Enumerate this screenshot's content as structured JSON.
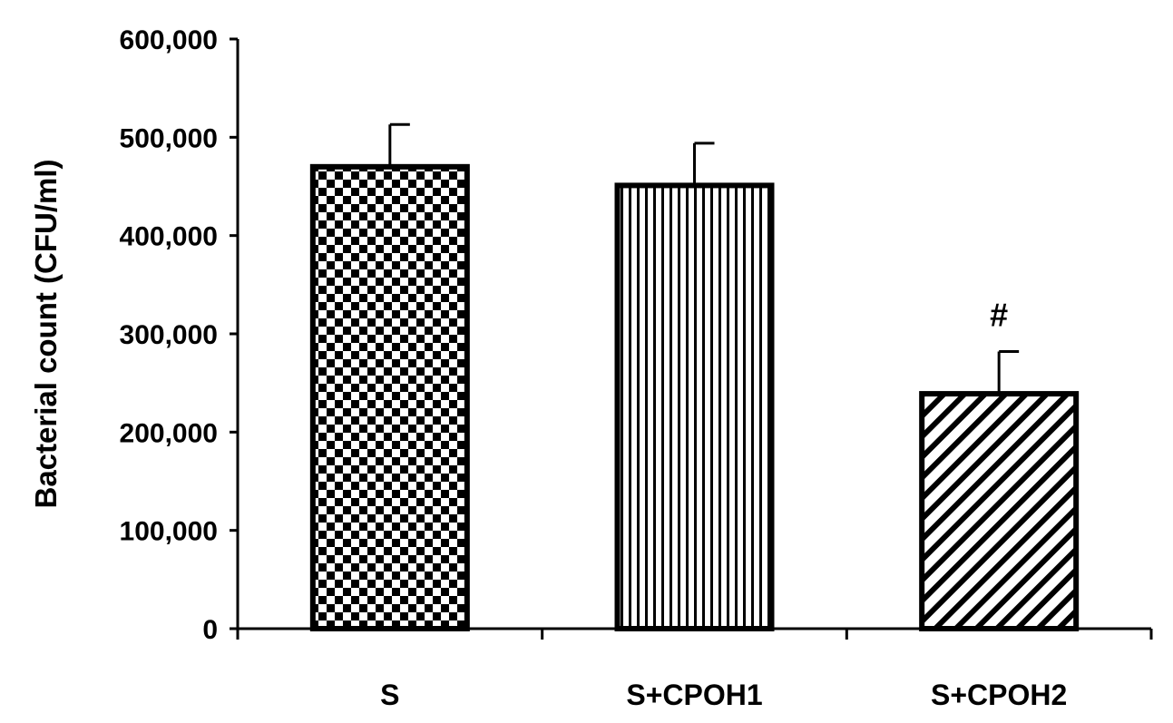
{
  "chart_data": {
    "type": "bar",
    "categories": [
      "S",
      "S+CPOH1",
      "S+CPOH2"
    ],
    "values": [
      470000,
      451000,
      239000
    ],
    "errors": [
      43000,
      43000,
      43000
    ],
    "annotations": [
      "",
      "",
      "#"
    ],
    "patterns": [
      "checkerboard",
      "vertical-lines",
      "diagonal-lines"
    ],
    "ylabel": "Bacterial count (CFU/ml)",
    "xlabel": "",
    "ylim": [
      0,
      600000
    ],
    "yticks": [
      0,
      100000,
      200000,
      300000,
      400000,
      500000,
      600000
    ],
    "ytick_labels": [
      "0",
      "100,000",
      "200,000",
      "300,000",
      "400,000",
      "500,000",
      "600,000"
    ],
    "grid": false,
    "legend": "none",
    "colors": {
      "bar_fill": "#ffffff",
      "pattern": "#000000",
      "axis": "#000000"
    }
  }
}
